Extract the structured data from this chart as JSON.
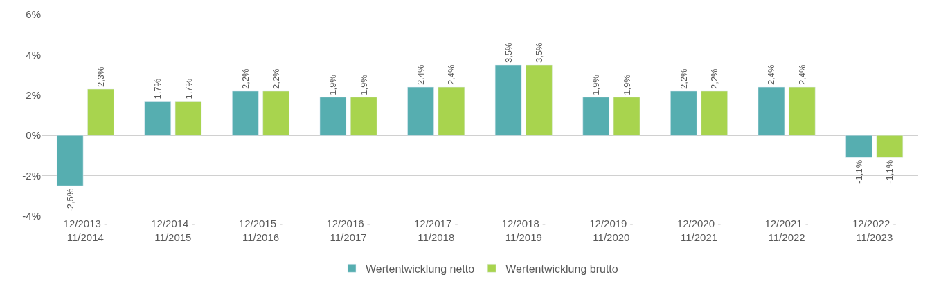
{
  "chart_data": {
    "type": "bar",
    "categories": [
      "12/2013 -\n11/2014",
      "12/2014 -\n11/2015",
      "12/2015 -\n11/2016",
      "12/2016 -\n11/2017",
      "12/2017 -\n11/2018",
      "12/2018 -\n11/2019",
      "12/2019 -\n11/2020",
      "12/2020 -\n11/2021",
      "12/2021 -\n11/2022",
      "12/2022 -\n11/2023"
    ],
    "series": [
      {
        "name": "Wertentwicklung netto",
        "color": "#56aeb0",
        "values": [
          -2.5,
          1.7,
          2.2,
          1.9,
          2.4,
          3.5,
          1.9,
          2.2,
          2.4,
          -1.1
        ],
        "value_labels": [
          "-2,5%",
          "1,7%",
          "2,2%",
          "1,9%",
          "2,4%",
          "3,5%",
          "1,9%",
          "2,2%",
          "2,4%",
          "-1,1%"
        ]
      },
      {
        "name": "Wertentwicklung brutto",
        "color": "#a8d44e",
        "values": [
          2.3,
          1.7,
          2.2,
          1.9,
          2.4,
          3.5,
          1.9,
          2.2,
          2.4,
          -1.1
        ],
        "value_labels": [
          "2,3%",
          "1,7%",
          "2,2%",
          "1,9%",
          "2,4%",
          "3,5%",
          "1,9%",
          "2,2%",
          "2,4%",
          "-1,1%"
        ]
      }
    ],
    "ylim": [
      -4,
      6
    ],
    "yticks": [
      {
        "value": -4,
        "label": "-4%"
      },
      {
        "value": -2,
        "label": "-2%"
      },
      {
        "value": 0,
        "label": "0%"
      },
      {
        "value": 2,
        "label": "2%"
      },
      {
        "value": 4,
        "label": "4%"
      },
      {
        "value": 6,
        "label": "6%"
      }
    ],
    "grid": "y",
    "legend": "bottom"
  }
}
